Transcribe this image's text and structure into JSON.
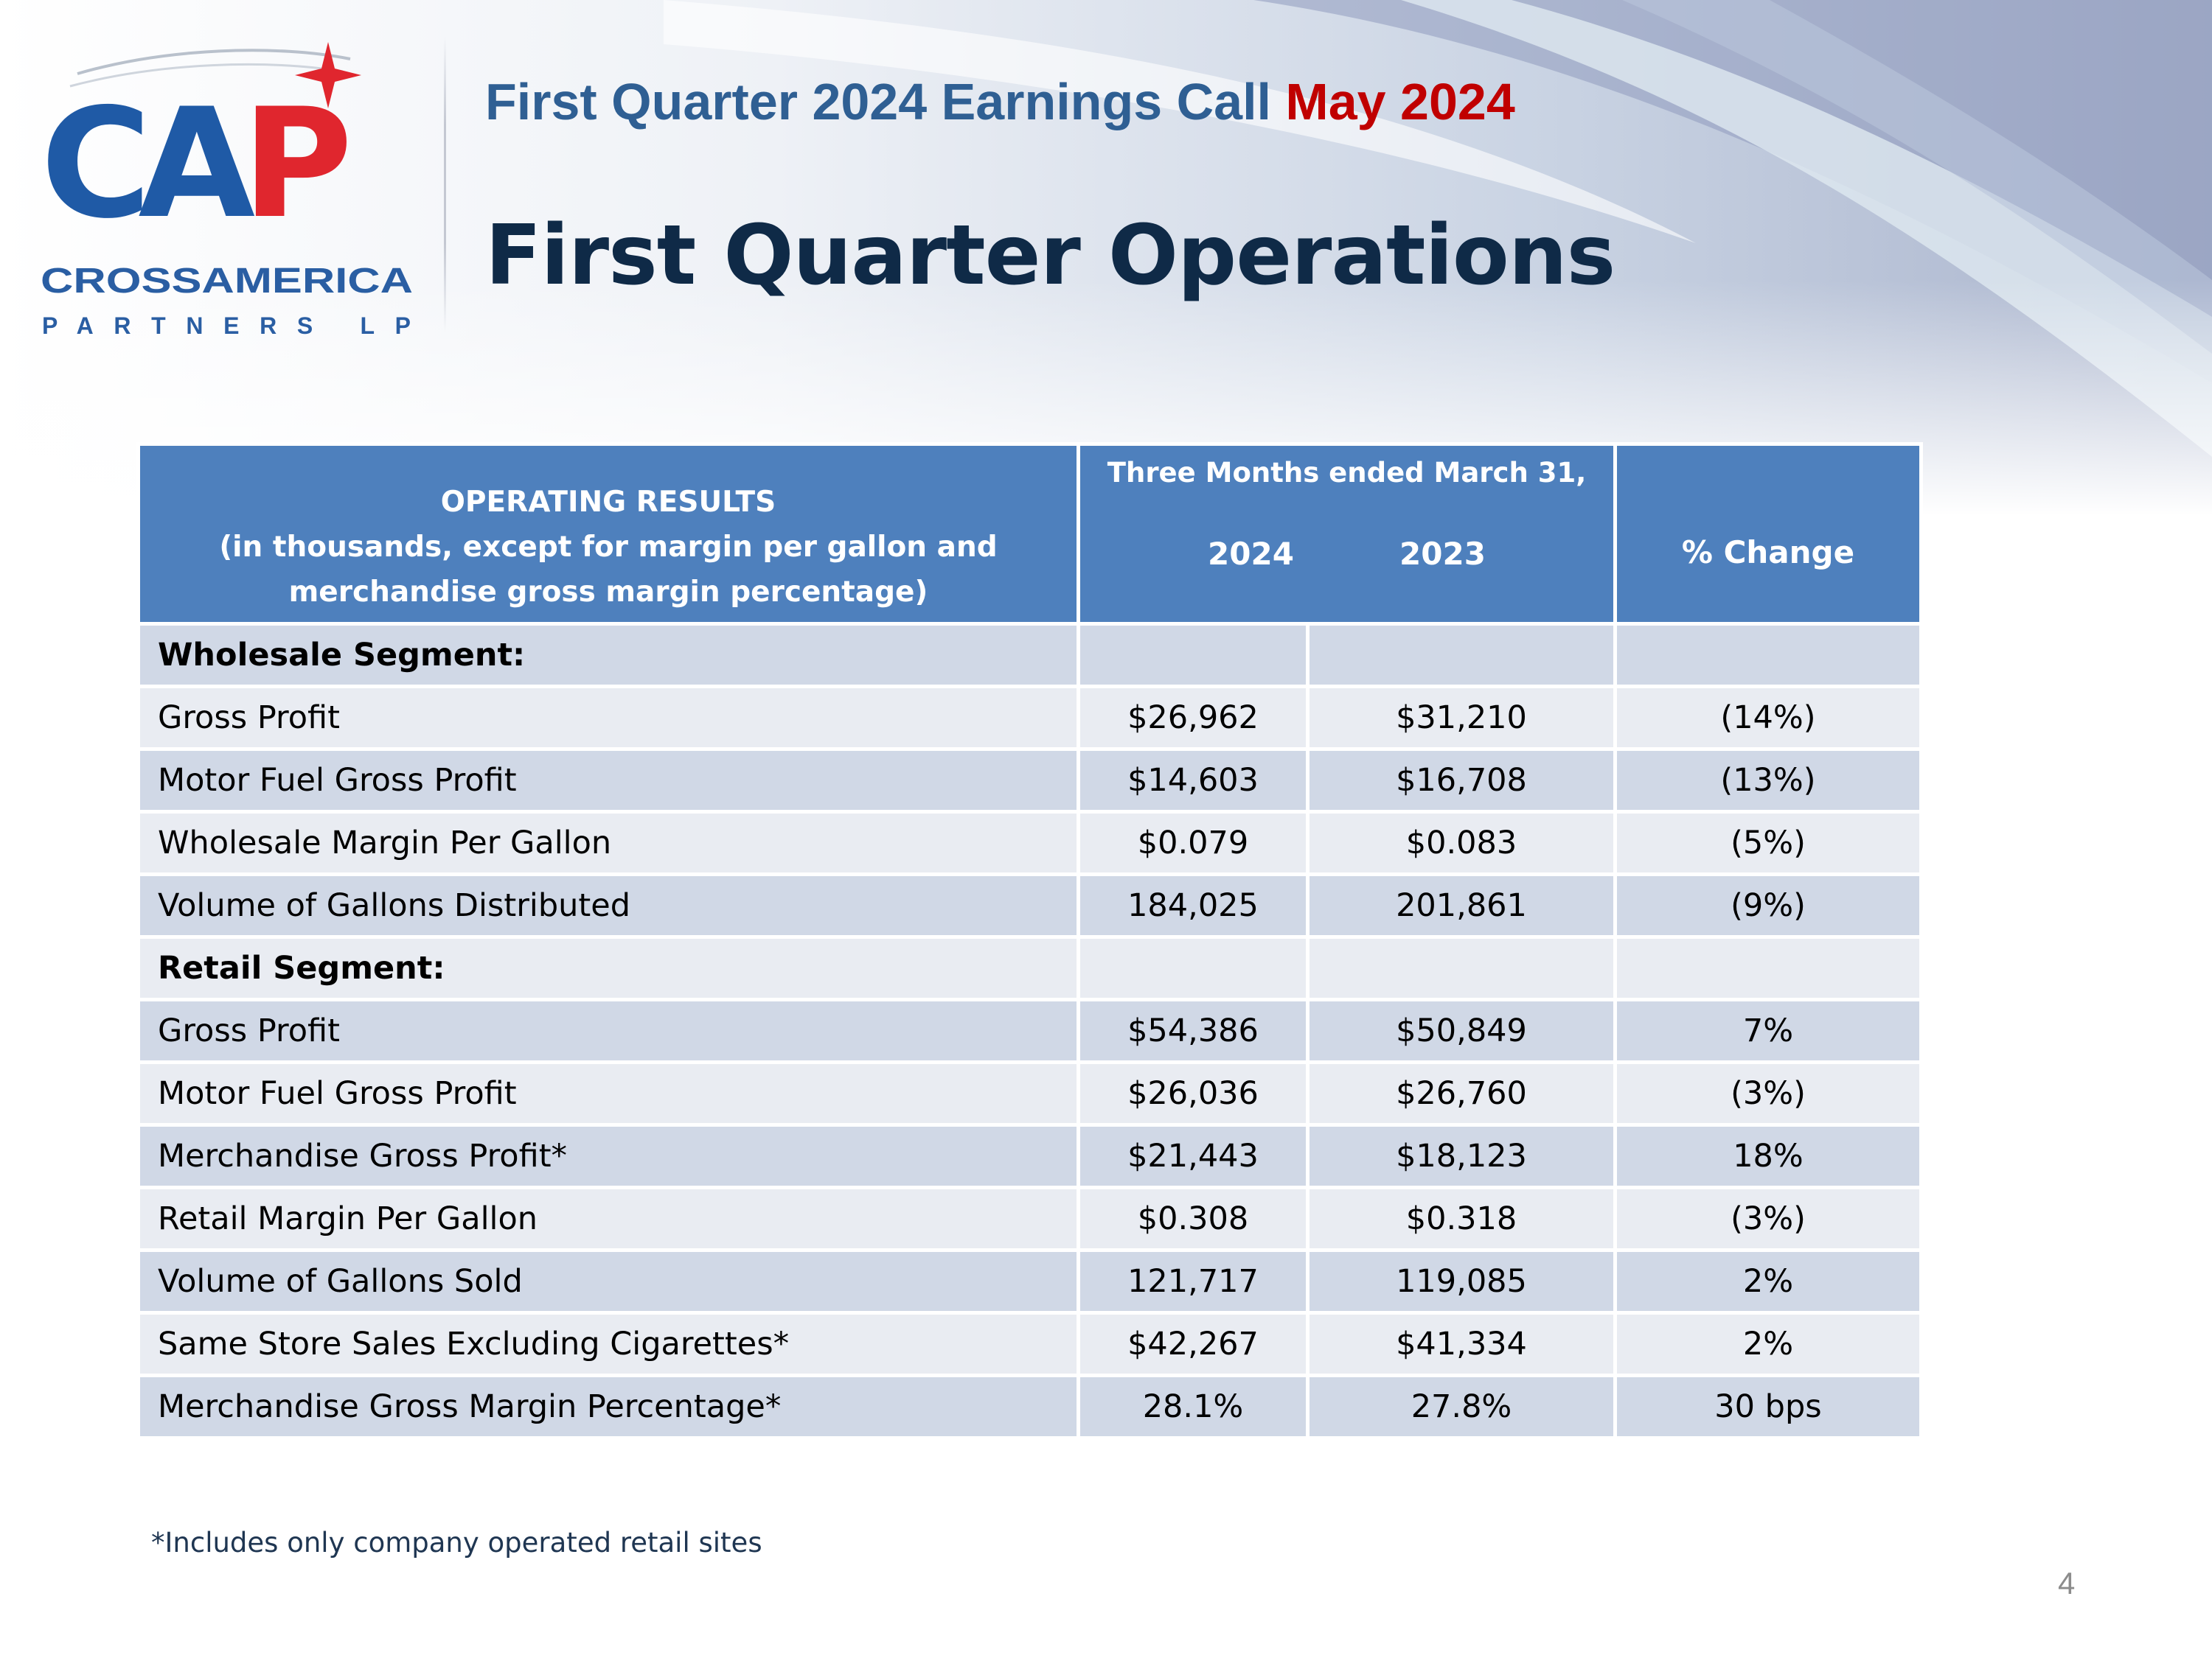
{
  "header": {
    "event": "First Quarter 2024 Earnings Call",
    "date": "May 2024",
    "title": "First Quarter Operations"
  },
  "logo": {
    "text": "CAP",
    "name_line1": "CROSSAMERICA",
    "name_line2": "PARTNERS LP",
    "colors": {
      "blue": "#1f5aa6",
      "red": "#e0262e"
    }
  },
  "table": {
    "header": {
      "op_line1": "OPERATING RESULTS",
      "op_line2": "(in thousands, except for margin per gallon and",
      "op_line3": "merchandise gross margin percentage)",
      "period": "Three Months ended March 31,",
      "year1": "2024",
      "year2": "2023",
      "change": "% Change"
    },
    "rows": [
      {
        "label": "Wholesale Segment:",
        "v2024": "",
        "v2023": "",
        "change": ""
      },
      {
        "label": "Gross Profit",
        "v2024": "$26,962",
        "v2023": "$31,210",
        "change": "(14%)"
      },
      {
        "label": "Motor Fuel Gross Profit",
        "v2024": "$14,603",
        "v2023": "$16,708",
        "change": "(13%)"
      },
      {
        "label": "Wholesale Margin Per Gallon",
        "v2024": "$0.079",
        "v2023": "$0.083",
        "change": "(5%)"
      },
      {
        "label": "Volume of Gallons Distributed",
        "v2024": "184,025",
        "v2023": "201,861",
        "change": "(9%)"
      },
      {
        "label": "Retail Segment:",
        "v2024": "",
        "v2023": "",
        "change": ""
      },
      {
        "label": "Gross Profit",
        "v2024": "$54,386",
        "v2023": "$50,849",
        "change": "7%"
      },
      {
        "label": "Motor Fuel Gross Profit",
        "v2024": "$26,036",
        "v2023": "$26,760",
        "change": "(3%)"
      },
      {
        "label": "Merchandise Gross Profit*",
        "v2024": "$21,443",
        "v2023": "$18,123",
        "change": "18%"
      },
      {
        "label": "Retail Margin Per Gallon",
        "v2024": "$0.308",
        "v2023": "$0.318",
        "change": "(3%)"
      },
      {
        "label": "Volume of Gallons Sold",
        "v2024": "121,717",
        "v2023": "119,085",
        "change": "2%"
      },
      {
        "label": "Same Store Sales Excluding Cigarettes*",
        "v2024": "$42,267",
        "v2023": "$41,334",
        "change": "2%"
      },
      {
        "label": "Merchandise Gross Margin Percentage*",
        "v2024": "28.1%",
        "v2023": "27.8%",
        "change": "30 bps"
      }
    ]
  },
  "footnote": "*Includes only company operated retail sites",
  "page_number": "4",
  "colors": {
    "header_blue": "#4e80bd",
    "row_dark": "#d0d8e6",
    "row_light": "#e9ecf2",
    "title_navy": "#0f2a47",
    "subtitle_blue": "#2f5f93",
    "date_red": "#c00000"
  }
}
